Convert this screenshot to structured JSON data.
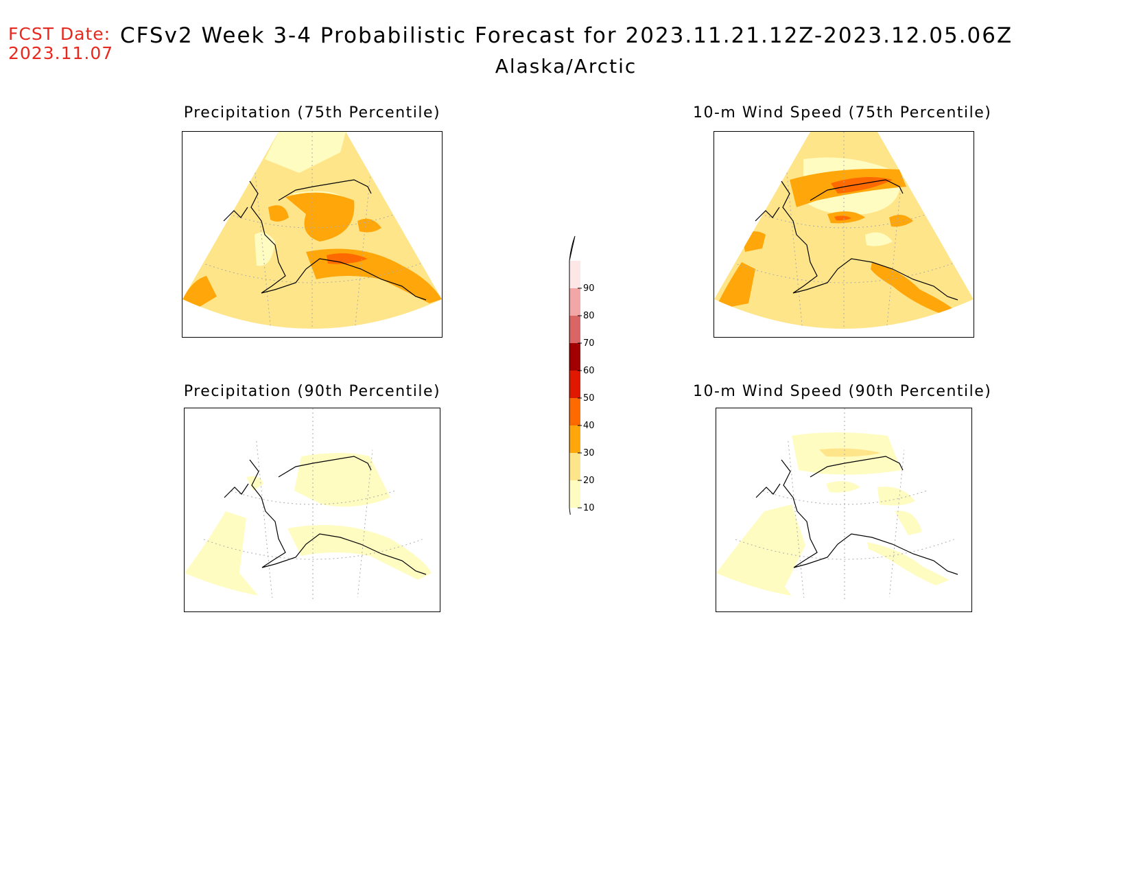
{
  "header": {
    "fcst_label": "FCST Date:",
    "fcst_date": "2023.11.07",
    "title": "CFSv2 Week 3-4 Probabilistic Forecast for 2023.11.21.12Z-2023.12.05.06Z",
    "region": "Alaska/Arctic"
  },
  "panels": [
    {
      "title": "Precipitation (75th Percentile)",
      "variable": "precipitation",
      "percentile": "75th"
    },
    {
      "title": "10-m Wind Speed (75th Percentile)",
      "variable": "wind_speed",
      "percentile": "75th"
    },
    {
      "title": "Precipitation (90th Percentile)",
      "variable": "precipitation",
      "percentile": "90th"
    },
    {
      "title": "10-m Wind Speed (90th Percentile)",
      "variable": "wind_speed",
      "percentile": "90th"
    }
  ],
  "colorbar": {
    "levels": [
      "10",
      "20",
      "30",
      "40",
      "50",
      "60",
      "70",
      "80",
      "90"
    ],
    "colors": [
      "#fffcc2",
      "#ffe58a",
      "#ffa60a",
      "#ff6a00",
      "#e01800",
      "#a20000",
      "#d96565",
      "#f2a6a6",
      "#fde6e6"
    ]
  }
}
